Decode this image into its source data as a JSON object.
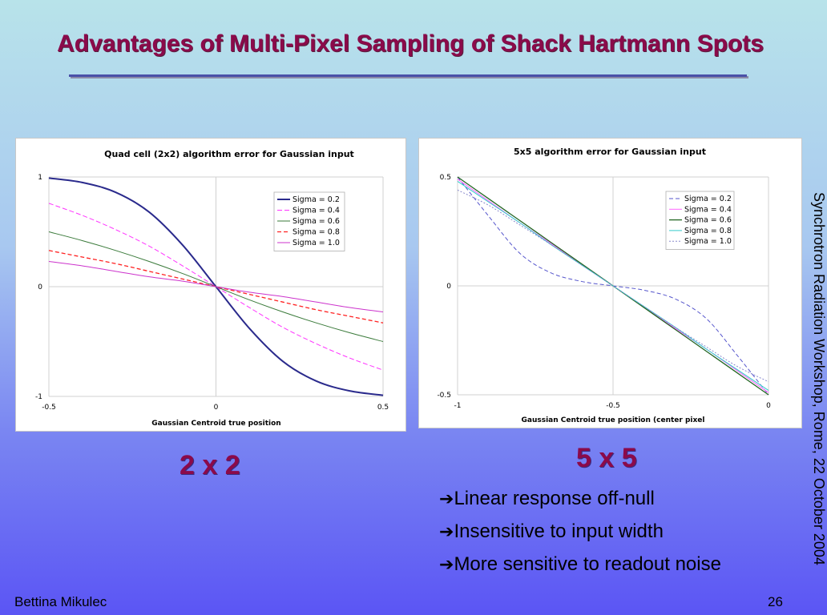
{
  "slide": {
    "title": "Advantages of Multi-Pixel Sampling of Shack Hartmann Spots",
    "caption_left": "2 x 2",
    "caption_right": "5 x 5",
    "bullets": [
      "Linear response off-null",
      "Insensitive to input width",
      "More sensitive to readout noise"
    ],
    "bullet_arrow": "➔",
    "side_text": "Synchrotron Radiation Workshop, Rome, 22 October 2004",
    "author": "Bettina Mikulec",
    "page_number": "26"
  },
  "chart_data": [
    {
      "type": "line",
      "title": "Quad cell  (2x2) algorithm error for Gaussian input",
      "xlabel": "Gaussian Centroid true position",
      "ylabel": "",
      "xlim": [
        -0.5,
        0.5
      ],
      "ylim": [
        -1,
        1
      ],
      "xticks": [
        "-0.5",
        "0",
        "0.5"
      ],
      "yticks": [
        "1",
        "0",
        "-1"
      ],
      "grid": true,
      "legend_position": "top-right",
      "x": [
        -0.5,
        -0.4,
        -0.3,
        -0.2,
        -0.1,
        0,
        0.1,
        0.2,
        0.3,
        0.4,
        0.5
      ],
      "series": [
        {
          "name": "Sigma = 0.2",
          "color": "#2a2a8c",
          "dash": "",
          "width": 2,
          "values": [
            0.99,
            0.95,
            0.86,
            0.68,
            0.38,
            0,
            -0.38,
            -0.68,
            -0.86,
            -0.95,
            -0.99
          ]
        },
        {
          "name": "Sigma = 0.4",
          "color": "#ff33ff",
          "dash": "6,3",
          "width": 1,
          "values": [
            0.76,
            0.65,
            0.52,
            0.37,
            0.19,
            0,
            -0.19,
            -0.37,
            -0.52,
            -0.65,
            -0.76
          ]
        },
        {
          "name": "Sigma = 0.6",
          "color": "#3a7a3a",
          "dash": "",
          "width": 1,
          "values": [
            0.5,
            0.42,
            0.33,
            0.23,
            0.12,
            0,
            -0.12,
            -0.23,
            -0.33,
            -0.42,
            -0.5
          ]
        },
        {
          "name": "Sigma = 0.8",
          "color": "#ff2222",
          "dash": "5,3",
          "width": 1.3,
          "values": [
            0.33,
            0.27,
            0.21,
            0.14,
            0.07,
            0,
            -0.07,
            -0.14,
            -0.21,
            -0.27,
            -0.33
          ]
        },
        {
          "name": "Sigma = 1.0",
          "color": "#cc33cc",
          "dash": "",
          "width": 1,
          "values": [
            0.23,
            0.19,
            0.14,
            0.09,
            0.05,
            0,
            -0.05,
            -0.09,
            -0.14,
            -0.19,
            -0.23
          ]
        }
      ]
    },
    {
      "type": "line",
      "title": "5x5 algorithm error for Gaussian input",
      "xlabel": "Gaussian Centroid true position (center pixel",
      "ylabel": "",
      "xlim": [
        -1,
        0
      ],
      "ylim": [
        -0.5,
        0.5
      ],
      "xticks": [
        "-1",
        "-0.5",
        "0"
      ],
      "yticks": [
        "0.5",
        "0",
        "-0.5"
      ],
      "grid": true,
      "legend_position": "top-right",
      "x": [
        -1,
        -0.9,
        -0.8,
        -0.7,
        -0.6,
        -0.5,
        -0.4,
        -0.3,
        -0.2,
        -0.1,
        0
      ],
      "series": [
        {
          "name": "Sigma = 0.2",
          "color": "#5555cc",
          "dash": "5,3",
          "width": 1,
          "values": [
            0.5,
            0.32,
            0.15,
            0.06,
            0.02,
            0,
            -0.02,
            -0.06,
            -0.15,
            -0.32,
            -0.5
          ]
        },
        {
          "name": "Sigma = 0.4",
          "color": "#ff66ff",
          "dash": "",
          "width": 1,
          "values": [
            0.49,
            0.39,
            0.29,
            0.195,
            0.098,
            0,
            -0.098,
            -0.195,
            -0.29,
            -0.39,
            -0.49
          ]
        },
        {
          "name": "Sigma = 0.6",
          "color": "#226622",
          "dash": "",
          "width": 1.3,
          "values": [
            0.5,
            0.4,
            0.3,
            0.2,
            0.1,
            0,
            -0.1,
            -0.2,
            -0.3,
            -0.4,
            -0.5
          ]
        },
        {
          "name": "Sigma = 0.8",
          "color": "#33cccc",
          "dash": "",
          "width": 1,
          "values": [
            0.48,
            0.385,
            0.29,
            0.19,
            0.095,
            0,
            -0.095,
            -0.19,
            -0.29,
            -0.385,
            -0.48
          ]
        },
        {
          "name": "Sigma = 1.0",
          "color": "#8888cc",
          "dash": "2,2",
          "width": 1,
          "values": [
            0.44,
            0.37,
            0.28,
            0.19,
            0.095,
            0,
            -0.095,
            -0.19,
            -0.28,
            -0.37,
            -0.44
          ]
        }
      ]
    }
  ]
}
